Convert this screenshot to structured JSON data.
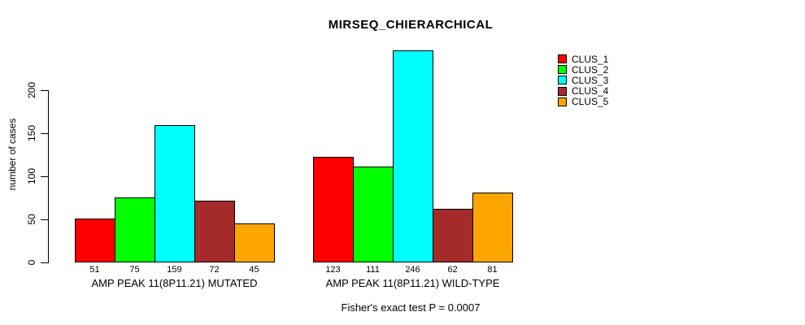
{
  "chart_data": {
    "type": "bar",
    "title": "MIRSEQ_CHIERARCHICAL",
    "ylabel": "number of cases",
    "xlabel": "",
    "ylim": [
      0,
      200
    ],
    "yticks": [
      0,
      50,
      100,
      150,
      200
    ],
    "grid": false,
    "legend_position": "top-right",
    "series": [
      {
        "name": "CLUS_1",
        "color": "#FF0000"
      },
      {
        "name": "CLUS_2",
        "color": "#00FF00"
      },
      {
        "name": "CLUS_3",
        "color": "#00FFFF"
      },
      {
        "name": "CLUS_4",
        "color": "#A52A2A"
      },
      {
        "name": "CLUS_5",
        "color": "#FFA500"
      }
    ],
    "groups": [
      {
        "label": "AMP PEAK 11(8P11.21) MUTATED",
        "values": [
          51,
          75,
          159,
          72,
          45
        ]
      },
      {
        "label": "AMP PEAK 11(8P11.21) WILD-TYPE",
        "values": [
          123,
          111,
          246,
          62,
          81
        ]
      }
    ],
    "annotation": "Fisher's exact test P = 0.0007"
  }
}
